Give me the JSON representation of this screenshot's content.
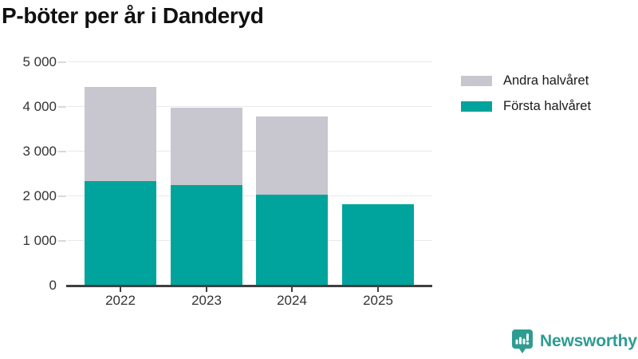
{
  "title": "P-böter per år i Danderyd",
  "legend": [
    {
      "label": "Andra halvåret",
      "color": "#c8c6ce"
    },
    {
      "label": "Första halvåret",
      "color": "#00a49c"
    }
  ],
  "chart_data": {
    "type": "bar",
    "stacked": true,
    "title": "P-böter per år i Danderyd",
    "categories": [
      "2022",
      "2023",
      "2024",
      "2025"
    ],
    "series": [
      {
        "name": "Första halvåret",
        "color": "#00a49c",
        "values": [
          2340,
          2250,
          2040,
          1820
        ]
      },
      {
        "name": "Andra halvåret",
        "color": "#c8c6ce",
        "values": [
          2100,
          1730,
          1740,
          0
        ]
      }
    ],
    "xlabel": "",
    "ylabel": "",
    "ylim": [
      0,
      5000
    ],
    "yticks": [
      0,
      1000,
      2000,
      3000,
      4000,
      5000
    ],
    "ytick_labels": [
      "0",
      "1 000",
      "2 000",
      "3 000",
      "4 000",
      "5 000"
    ],
    "grid": true,
    "legend_position": "right"
  },
  "branding": {
    "logo_text": "Newsworthy",
    "logo_icon": "newsworthy-chart-bubble-icon",
    "logo_color": "#2e9c92"
  }
}
